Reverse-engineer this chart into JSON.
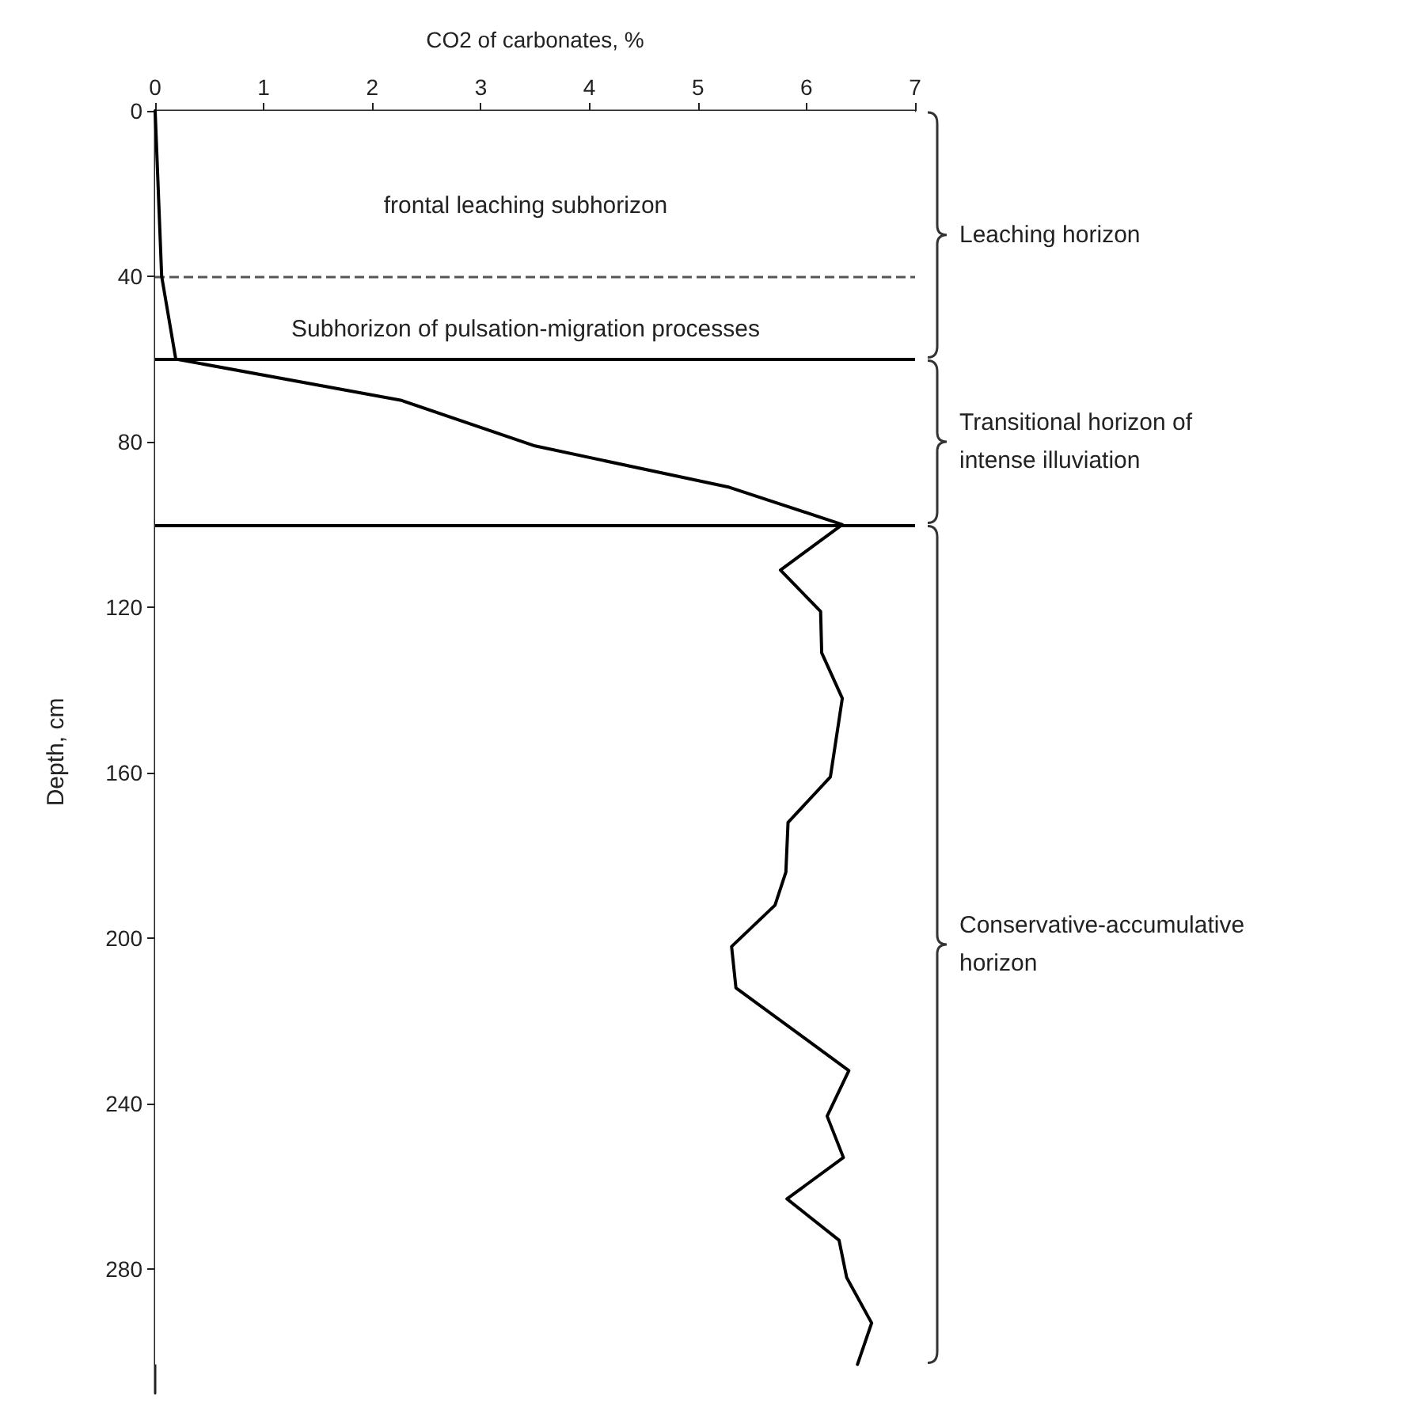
{
  "chart_data": {
    "type": "line",
    "xlabel": "CO2 of carbonates, %",
    "ylabel": "Depth, cm",
    "x": [
      0,
      0.06,
      0.19,
      2.27,
      3.5,
      5.29,
      6.33,
      5.76,
      6.13,
      6.14,
      6.33,
      6.22,
      5.83,
      5.81,
      5.71,
      5.31,
      5.35,
      6.39,
      6.19,
      6.34,
      5.82,
      6.3,
      6.37,
      6.6,
      6.47
    ],
    "values": [
      0,
      40,
      60,
      70,
      81,
      91,
      100,
      111,
      121,
      131,
      142,
      161,
      172,
      184,
      192,
      202,
      212,
      232,
      243,
      253,
      263,
      273,
      282,
      293,
      303
    ],
    "color": "#000000",
    "marker": "none",
    "line_style": "solid",
    "grid": false,
    "xlim": [
      0,
      7
    ],
    "xticks": [
      0,
      1,
      2,
      3,
      4,
      5,
      6,
      7
    ],
    "ylim": [
      310,
      0
    ],
    "yticks": [
      0,
      40,
      80,
      120,
      160,
      200,
      240,
      280
    ],
    "ref_lines": [
      {
        "axis": "y",
        "value": 40,
        "color": "#555555",
        "line_style": "dashed"
      },
      {
        "axis": "y",
        "value": 60,
        "color": "#000000",
        "line_style": "solid"
      },
      {
        "axis": "y",
        "value": 100,
        "color": "#000000",
        "line_style": "solid"
      }
    ],
    "bands": [
      {
        "axis": "y",
        "from": 0,
        "to": 60,
        "label": "Leaching horizon",
        "color": "#ffffff"
      },
      {
        "axis": "y",
        "from": 60,
        "to": 100,
        "label": "Transitional horizon of intense illuviation",
        "color": "#ffffff"
      },
      {
        "axis": "y",
        "from": 100,
        "to": 303,
        "label": "Conservative-accumulative horizon",
        "color": "#ffffff"
      }
    ],
    "annotations": [
      "frontal leaching subhorizon",
      "Subhorizon of pulsation-migration processes"
    ]
  }
}
